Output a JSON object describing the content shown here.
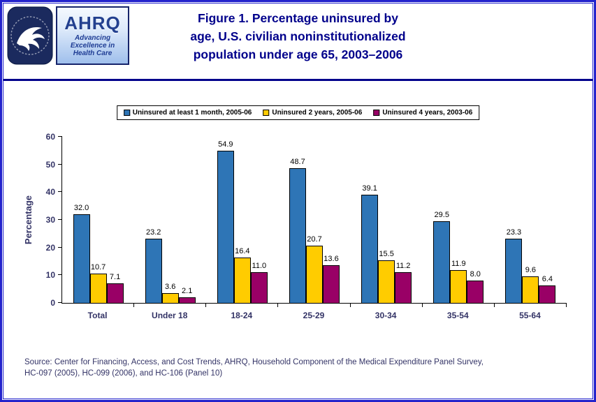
{
  "header": {
    "title_lines": [
      "Figure 1. Percentage uninsured by",
      "age, U.S. civilian noninstitutionalized",
      "population under age 65, 2003–2006"
    ],
    "ahrq_logo": {
      "acronym": "AHRQ",
      "tagline_lines": [
        "Advancing",
        "Excellence in",
        "Health Care"
      ]
    }
  },
  "chart_data": {
    "type": "bar",
    "title": "Figure 1. Percentage uninsured by age, U.S. civilian noninstitutionalized population under age 65, 2003–2006",
    "categories": [
      "Total",
      "Under 18",
      "18-24",
      "25-29",
      "30-34",
      "35-54",
      "55-64"
    ],
    "series": [
      {
        "name": "Uninsured at least 1 month, 2005-06",
        "color": "#2E75B6",
        "values": [
          32.0,
          23.2,
          54.9,
          48.7,
          39.1,
          29.5,
          23.3
        ]
      },
      {
        "name": "Uninsured 2 years, 2005-06",
        "color": "#FFCC00",
        "values": [
          10.7,
          3.6,
          16.4,
          20.7,
          15.5,
          11.9,
          9.6
        ]
      },
      {
        "name": "Uninsured 4 years, 2003-06",
        "color": "#990066",
        "values": [
          7.1,
          2.1,
          11.0,
          13.6,
          11.2,
          8.0,
          6.4
        ]
      }
    ],
    "xlabel": "",
    "ylabel": "Percentage",
    "ylim": [
      0,
      60
    ],
    "yticks": [
      0,
      10,
      20,
      30,
      40,
      50,
      60
    ],
    "grid": false,
    "legend_position": "top",
    "value_labels": true
  },
  "footer": {
    "source_lines": [
      "Source: Center for Financing, Access, and Cost Trends, AHRQ, Household Component of the Medical Expenditure Panel Survey,",
      "HC-097 (2005), HC-099 (2006), and HC-106 (Panel 10)"
    ]
  }
}
